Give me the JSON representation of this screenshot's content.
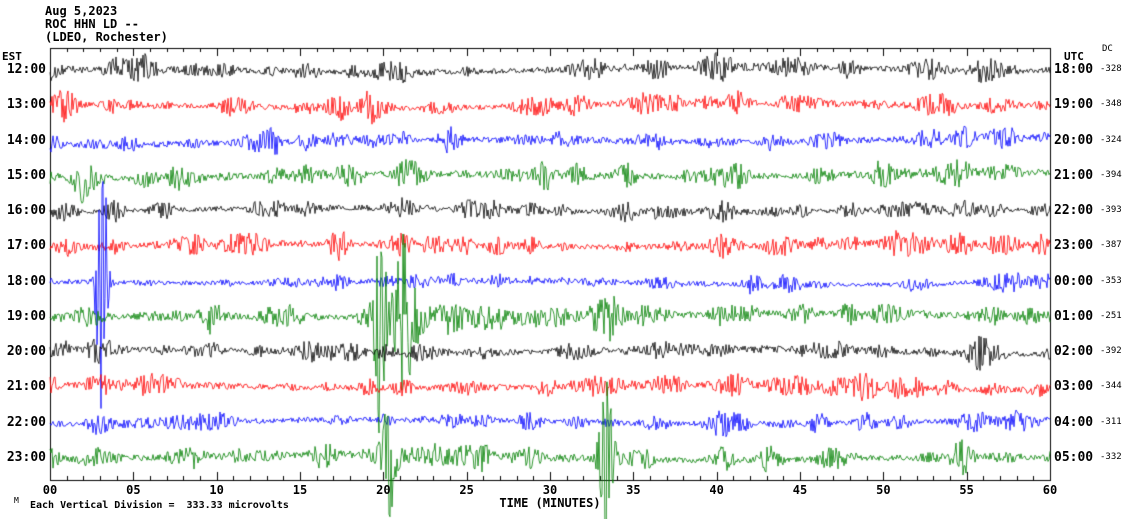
{
  "chart_data": {
    "type": "line",
    "subtype": "seismogram-helicorder",
    "header": {
      "date": "Aug 5,2023",
      "station": "ROC HHN LD --",
      "location": "(LDEO, Rochester)"
    },
    "axes": {
      "left_label": "EST",
      "right_label": "UTC",
      "dc_label": "DC"
    },
    "xlabel": "TIME (MINUTES)",
    "x_range": [
      0,
      60
    ],
    "x_ticks": [
      "00",
      "05",
      "10",
      "15",
      "20",
      "25",
      "30",
      "35",
      "40",
      "45",
      "50",
      "55",
      "60"
    ],
    "footer": "Each Vertical Division =  333.33 microvolts",
    "corner_mark": "M",
    "trace_color_cycle": [
      "#000000",
      "#ff0000",
      "#0000ff",
      "#008000"
    ],
    "rows": [
      {
        "est": "12:00",
        "utc": "18:00",
        "dc": "-328",
        "color": "#000000"
      },
      {
        "est": "13:00",
        "utc": "19:00",
        "dc": "-348",
        "color": "#ff0000"
      },
      {
        "est": "14:00",
        "utc": "20:00",
        "dc": "-324",
        "color": "#0000ff"
      },
      {
        "est": "15:00",
        "utc": "21:00",
        "dc": "-394",
        "color": "#008000"
      },
      {
        "est": "16:00",
        "utc": "22:00",
        "dc": "-393",
        "color": "#000000"
      },
      {
        "est": "17:00",
        "utc": "23:00",
        "dc": "-387",
        "color": "#ff0000"
      },
      {
        "est": "18:00",
        "utc": "00:00",
        "dc": "-353",
        "color": "#0000ff"
      },
      {
        "est": "19:00",
        "utc": "01:00",
        "dc": "-251",
        "color": "#008000"
      },
      {
        "est": "20:00",
        "utc": "02:00",
        "dc": "-392",
        "color": "#000000"
      },
      {
        "est": "21:00",
        "utc": "03:00",
        "dc": "-344",
        "color": "#ff0000"
      },
      {
        "est": "22:00",
        "utc": "04:00",
        "dc": "-311",
        "color": "#0000ff"
      },
      {
        "est": "23:00",
        "utc": "05:00",
        "dc": "-332",
        "color": "#008000"
      }
    ],
    "events": [
      {
        "row": 6,
        "minute": 3.1,
        "up": 190,
        "down": 170,
        "width": 1.2,
        "note": "tall transient spanning plot height"
      },
      {
        "row": 7,
        "minute": 19.8,
        "up": 160,
        "down": 140,
        "width": 1.2,
        "note": "tall green transient"
      },
      {
        "row": 7,
        "minute": 21.1,
        "up": 85,
        "down": 40,
        "width": 2.5,
        "coda": true,
        "note": "large event with decaying coda on 19:00 EST trace"
      },
      {
        "row": 11,
        "minute": 20.4,
        "up": 40,
        "down": 60,
        "width": 1.5,
        "note": "downward spike"
      },
      {
        "row": 11,
        "minute": 33.4,
        "up": 150,
        "down": 80,
        "width": 1.5,
        "note": "large spike extending below axis"
      }
    ]
  }
}
